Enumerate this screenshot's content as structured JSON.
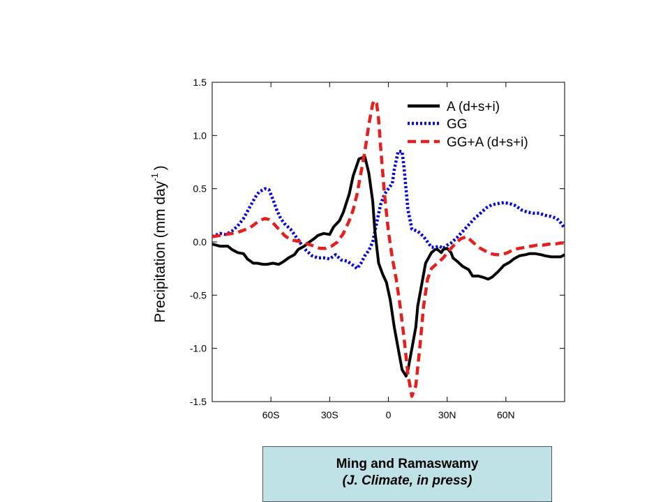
{
  "chart_data": {
    "type": "line",
    "ylabel_main": "Precipitation (mm day",
    "ylabel_sup": "-1",
    "ylabel_close": ")",
    "xlabel": "",
    "xlim": [
      -90,
      90
    ],
    "ylim": [
      -1.5,
      1.5
    ],
    "xticks": [
      -60,
      -30,
      0,
      30,
      60
    ],
    "xtick_labels": [
      "60S",
      "30S",
      "0",
      "30N",
      "60N"
    ],
    "yticks": [
      -1.5,
      -1.0,
      -0.5,
      0.0,
      0.5,
      1.0,
      1.5
    ],
    "ytick_labels": [
      "-1.5",
      "-1.0",
      "-0.5",
      "0.0",
      "0.5",
      "1.0",
      "1.5"
    ],
    "grid": false,
    "legend_position": "top-right",
    "series": [
      {
        "name": "A (d+s+i)",
        "color": "#000000",
        "style": "solid",
        "x": [
          -90,
          -86,
          -82,
          -80,
          -77,
          -74,
          -72,
          -69,
          -67,
          -64,
          -62,
          -59,
          -56,
          -54,
          -51,
          -48,
          -46,
          -43,
          -41,
          -38,
          -36,
          -33,
          -30,
          -28,
          -25,
          -23,
          -20,
          -18,
          -15,
          -12,
          -10,
          -8,
          -7,
          -5,
          -3,
          -1,
          1,
          3,
          5,
          7,
          9,
          10,
          12,
          14,
          15,
          17,
          19,
          22,
          24,
          25,
          27,
          28,
          30,
          32,
          33,
          35,
          38,
          41,
          43,
          46,
          48,
          51,
          53,
          56,
          59,
          62,
          64,
          67,
          70,
          72,
          75,
          78,
          80,
          83,
          85,
          88,
          90
        ],
        "y": [
          -0.02,
          -0.04,
          -0.04,
          -0.07,
          -0.1,
          -0.11,
          -0.16,
          -0.2,
          -0.2,
          -0.21,
          -0.21,
          -0.2,
          -0.21,
          -0.19,
          -0.15,
          -0.12,
          -0.07,
          -0.04,
          -0.01,
          0.03,
          0.06,
          0.08,
          0.07,
          0.14,
          0.2,
          0.28,
          0.45,
          0.62,
          0.78,
          0.8,
          0.65,
          0.38,
          0.12,
          -0.2,
          -0.3,
          -0.38,
          -0.55,
          -0.8,
          -1.0,
          -1.2,
          -1.26,
          -1.2,
          -1.0,
          -0.8,
          -0.6,
          -0.4,
          -0.2,
          -0.1,
          -0.07,
          -0.07,
          -0.1,
          -0.07,
          -0.06,
          -0.1,
          -0.15,
          -0.18,
          -0.23,
          -0.26,
          -0.32,
          -0.32,
          -0.33,
          -0.35,
          -0.33,
          -0.28,
          -0.22,
          -0.19,
          -0.16,
          -0.13,
          -0.12,
          -0.11,
          -0.11,
          -0.12,
          -0.13,
          -0.14,
          -0.14,
          -0.14,
          -0.12
        ]
      },
      {
        "name": "GG",
        "color": "#0000e6",
        "style": "dotted",
        "x": [
          -90,
          -86,
          -83,
          -80,
          -77,
          -74,
          -71,
          -68,
          -66,
          -63,
          -61,
          -59,
          -57,
          -55,
          -53,
          -50,
          -48,
          -45,
          -42,
          -39,
          -36,
          -33,
          -30,
          -27,
          -24,
          -21,
          -18,
          -16,
          -14,
          -12,
          -10,
          -8,
          -6,
          -4,
          -2,
          0,
          2,
          3,
          5,
          7,
          8,
          10,
          12,
          15,
          18,
          20,
          22,
          24,
          26,
          28,
          30,
          32,
          35,
          38,
          41,
          44,
          47,
          50,
          53,
          56,
          59,
          62,
          65,
          68,
          71,
          74,
          77,
          80,
          83,
          86,
          88,
          90
        ],
        "y": [
          0.05,
          0.08,
          0.07,
          0.1,
          0.15,
          0.22,
          0.32,
          0.42,
          0.47,
          0.5,
          0.49,
          0.4,
          0.3,
          0.22,
          0.17,
          0.12,
          0.07,
          -0.01,
          -0.08,
          -0.13,
          -0.15,
          -0.15,
          -0.16,
          -0.12,
          -0.17,
          -0.18,
          -0.22,
          -0.25,
          -0.2,
          -0.13,
          -0.08,
          0.0,
          0.18,
          0.35,
          0.45,
          0.5,
          0.55,
          0.68,
          0.85,
          0.85,
          0.7,
          0.3,
          0.12,
          0.1,
          0.05,
          0.0,
          -0.05,
          -0.05,
          -0.04,
          -0.06,
          -0.03,
          -0.01,
          0.04,
          0.1,
          0.16,
          0.22,
          0.27,
          0.32,
          0.35,
          0.36,
          0.37,
          0.36,
          0.34,
          0.3,
          0.28,
          0.27,
          0.27,
          0.25,
          0.24,
          0.22,
          0.18,
          0.13
        ]
      },
      {
        "name": "GG+A (d+s+i)",
        "color": "#e61e1e",
        "style": "dashed",
        "x": [
          -90,
          -86,
          -83,
          -80,
          -77,
          -74,
          -71,
          -68,
          -66,
          -63,
          -61,
          -59,
          -57,
          -55,
          -53,
          -50,
          -47,
          -44,
          -41,
          -38,
          -35,
          -32,
          -29,
          -26,
          -23,
          -20,
          -18,
          -16,
          -14,
          -12,
          -10,
          -8,
          -7,
          -6,
          -5,
          -4,
          -2,
          0,
          2,
          4,
          6,
          8,
          10,
          12,
          14,
          16,
          18,
          20,
          22,
          25,
          28,
          31,
          34,
          37,
          40,
          43,
          46,
          49,
          52,
          55,
          58,
          61,
          64,
          67,
          70,
          73,
          76,
          79,
          82,
          85,
          88,
          90
        ],
        "y": [
          0.05,
          0.06,
          0.07,
          0.08,
          0.09,
          0.11,
          0.13,
          0.17,
          0.2,
          0.22,
          0.21,
          0.18,
          0.14,
          0.1,
          0.06,
          0.02,
          0.01,
          0.0,
          -0.02,
          -0.04,
          -0.06,
          -0.06,
          -0.04,
          0.0,
          0.08,
          0.2,
          0.3,
          0.45,
          0.65,
          0.85,
          1.1,
          1.3,
          1.33,
          1.3,
          1.15,
          0.9,
          0.45,
          0.1,
          -0.15,
          -0.35,
          -0.6,
          -0.9,
          -1.25,
          -1.45,
          -1.35,
          -1.0,
          -0.6,
          -0.35,
          -0.25,
          -0.2,
          -0.15,
          -0.08,
          -0.02,
          0.03,
          0.05,
          0.0,
          -0.05,
          -0.08,
          -0.11,
          -0.12,
          -0.12,
          -0.1,
          -0.07,
          -0.06,
          -0.05,
          -0.04,
          -0.03,
          -0.03,
          -0.02,
          -0.02,
          -0.01,
          -0.01
        ]
      }
    ]
  },
  "caption": {
    "authors": "Ming and Ramaswamy",
    "citation": "(J. Climate, in press)"
  }
}
